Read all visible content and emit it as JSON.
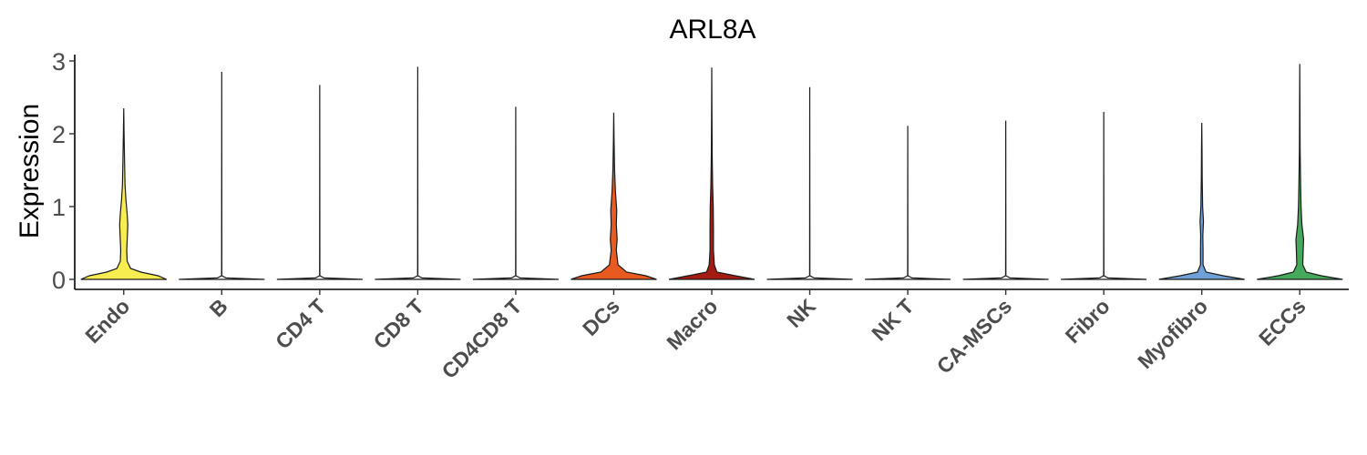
{
  "chart_data": {
    "type": "violin",
    "title": "ARL8A",
    "xlabel": "",
    "ylabel": "Expression",
    "ylim": [
      -0.12,
      3.1
    ],
    "yticks": [
      0,
      1,
      2,
      3
    ],
    "grid": false,
    "legend": "none",
    "categories": [
      "Endo",
      "B",
      "CD4 T",
      "CD8 T",
      "CD4CD8 T",
      "DCs",
      "Macro",
      "NK",
      "NK T",
      "CA-MSCs",
      "Fibro",
      "Myofibro",
      "ECCs"
    ],
    "colors": [
      "#F7EC50",
      "#FFFFFF",
      "#FFFFFF",
      "#FFFFFF",
      "#FFFFFF",
      "#E85A1F",
      "#A31C14",
      "#FFFFFF",
      "#FFFFFF",
      "#FFFFFF",
      "#FFFFFF",
      "#6FA0D6",
      "#45A85A"
    ],
    "max_values": [
      2.35,
      2.85,
      2.67,
      2.92,
      2.37,
      2.29,
      2.91,
      2.64,
      2.11,
      2.18,
      2.3,
      2.15,
      2.96
    ],
    "density_profiles": [
      [
        [
          0,
          1.0
        ],
        [
          0.05,
          0.8
        ],
        [
          0.1,
          0.4
        ],
        [
          0.15,
          0.16
        ],
        [
          0.25,
          0.08
        ],
        [
          0.4,
          0.07
        ],
        [
          0.6,
          0.085
        ],
        [
          0.75,
          0.095
        ],
        [
          0.9,
          0.08
        ],
        [
          1.1,
          0.05
        ],
        [
          1.3,
          0.03
        ],
        [
          1.6,
          0.02
        ],
        [
          2.0,
          0.008
        ],
        [
          2.35,
          0
        ]
      ],
      [
        [
          0,
          1.0
        ],
        [
          0.02,
          0.1
        ],
        [
          0.05,
          0.003
        ],
        [
          2.85,
          0
        ]
      ],
      [
        [
          0,
          1.0
        ],
        [
          0.02,
          0.1
        ],
        [
          0.05,
          0.003
        ],
        [
          2.67,
          0
        ]
      ],
      [
        [
          0,
          1.0
        ],
        [
          0.02,
          0.1
        ],
        [
          0.05,
          0.003
        ],
        [
          2.92,
          0
        ]
      ],
      [
        [
          0,
          1.0
        ],
        [
          0.02,
          0.1
        ],
        [
          0.05,
          0.003
        ],
        [
          2.37,
          0
        ]
      ],
      [
        [
          0,
          1.0
        ],
        [
          0.05,
          0.75
        ],
        [
          0.1,
          0.3
        ],
        [
          0.2,
          0.1
        ],
        [
          0.4,
          0.06
        ],
        [
          0.55,
          0.08
        ],
        [
          0.75,
          0.06
        ],
        [
          0.95,
          0.07
        ],
        [
          1.2,
          0.04
        ],
        [
          1.5,
          0.02
        ],
        [
          1.9,
          0.008
        ],
        [
          2.29,
          0
        ]
      ],
      [
        [
          0,
          1.0
        ],
        [
          0.05,
          0.55
        ],
        [
          0.1,
          0.12
        ],
        [
          0.2,
          0.06
        ],
        [
          0.4,
          0.04
        ],
        [
          0.7,
          0.04
        ],
        [
          1.0,
          0.035
        ],
        [
          1.3,
          0.02
        ],
        [
          1.7,
          0.01
        ],
        [
          2.2,
          0.005
        ],
        [
          2.91,
          0
        ]
      ],
      [
        [
          0,
          1.0
        ],
        [
          0.02,
          0.1
        ],
        [
          0.05,
          0.003
        ],
        [
          2.64,
          0
        ]
      ],
      [
        [
          0,
          1.0
        ],
        [
          0.02,
          0.1
        ],
        [
          0.05,
          0.003
        ],
        [
          2.11,
          0
        ]
      ],
      [
        [
          0,
          1.0
        ],
        [
          0.02,
          0.1
        ],
        [
          0.05,
          0.003
        ],
        [
          2.18,
          0
        ]
      ],
      [
        [
          0,
          1.0
        ],
        [
          0.02,
          0.1
        ],
        [
          0.05,
          0.003
        ],
        [
          2.3,
          0
        ]
      ],
      [
        [
          0,
          1.0
        ],
        [
          0.05,
          0.5
        ],
        [
          0.1,
          0.1
        ],
        [
          0.2,
          0.03
        ],
        [
          0.4,
          0.03
        ],
        [
          0.6,
          0.025
        ],
        [
          0.8,
          0.04
        ],
        [
          1.0,
          0.02
        ],
        [
          1.4,
          0.01
        ],
        [
          1.8,
          0.006
        ],
        [
          2.15,
          0
        ]
      ],
      [
        [
          0,
          1.0
        ],
        [
          0.05,
          0.5
        ],
        [
          0.1,
          0.15
        ],
        [
          0.2,
          0.07
        ],
        [
          0.4,
          0.08
        ],
        [
          0.55,
          0.09
        ],
        [
          0.75,
          0.05
        ],
        [
          1.0,
          0.03
        ],
        [
          1.3,
          0.02
        ],
        [
          1.8,
          0.008
        ],
        [
          2.4,
          0.004
        ],
        [
          2.96,
          0
        ]
      ]
    ]
  }
}
